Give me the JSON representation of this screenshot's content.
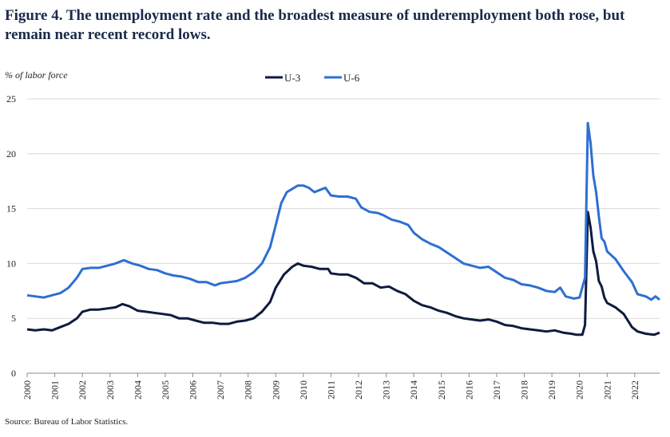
{
  "title": "Figure 4. The unemployment rate and the broadest measure of underemployment both rose, but remain near recent record lows.",
  "source": "Source: Bureau of Labor Statistics.",
  "chart_data": {
    "type": "line",
    "ylabel": "% of labor force",
    "xlabel": "",
    "ylim": [
      0,
      25
    ],
    "yticks": [
      0,
      5,
      10,
      15,
      20,
      25
    ],
    "xticks": [
      "2000",
      "2001",
      "2002",
      "2003",
      "2004",
      "2005",
      "2006",
      "2007",
      "2008",
      "2009",
      "2010",
      "2011",
      "2012",
      "2013",
      "2014",
      "2015",
      "2016",
      "2017",
      "2018",
      "2019",
      "2020",
      "2021",
      "2022"
    ],
    "xlim": [
      2000.0,
      2022.9
    ],
    "grid": "horizontal",
    "legend_position": "top-center",
    "series": [
      {
        "name": "U-3",
        "color": "#0d1b3e",
        "points": [
          [
            2000.0,
            4.0
          ],
          [
            2000.3,
            3.9
          ],
          [
            2000.6,
            4.0
          ],
          [
            2000.9,
            3.9
          ],
          [
            2001.2,
            4.2
          ],
          [
            2001.5,
            4.5
          ],
          [
            2001.8,
            5.0
          ],
          [
            2002.0,
            5.6
          ],
          [
            2002.3,
            5.8
          ],
          [
            2002.6,
            5.8
          ],
          [
            2002.9,
            5.9
          ],
          [
            2003.2,
            6.0
          ],
          [
            2003.45,
            6.3
          ],
          [
            2003.7,
            6.1
          ],
          [
            2004.0,
            5.7
          ],
          [
            2004.3,
            5.6
          ],
          [
            2004.6,
            5.5
          ],
          [
            2004.9,
            5.4
          ],
          [
            2005.2,
            5.3
          ],
          [
            2005.5,
            5.0
          ],
          [
            2005.8,
            5.0
          ],
          [
            2006.1,
            4.8
          ],
          [
            2006.4,
            4.6
          ],
          [
            2006.7,
            4.6
          ],
          [
            2007.0,
            4.5
          ],
          [
            2007.3,
            4.5
          ],
          [
            2007.6,
            4.7
          ],
          [
            2007.9,
            4.8
          ],
          [
            2008.2,
            5.0
          ],
          [
            2008.5,
            5.6
          ],
          [
            2008.8,
            6.5
          ],
          [
            2009.0,
            7.8
          ],
          [
            2009.3,
            9.0
          ],
          [
            2009.6,
            9.7
          ],
          [
            2009.8,
            10.0
          ],
          [
            2010.0,
            9.8
          ],
          [
            2010.3,
            9.7
          ],
          [
            2010.6,
            9.5
          ],
          [
            2010.9,
            9.5
          ],
          [
            2011.0,
            9.1
          ],
          [
            2011.3,
            9.0
          ],
          [
            2011.6,
            9.0
          ],
          [
            2011.9,
            8.7
          ],
          [
            2012.2,
            8.2
          ],
          [
            2012.5,
            8.2
          ],
          [
            2012.8,
            7.8
          ],
          [
            2013.1,
            7.9
          ],
          [
            2013.4,
            7.5
          ],
          [
            2013.7,
            7.2
          ],
          [
            2014.0,
            6.6
          ],
          [
            2014.3,
            6.2
          ],
          [
            2014.6,
            6.0
          ],
          [
            2014.9,
            5.7
          ],
          [
            2015.2,
            5.5
          ],
          [
            2015.5,
            5.2
          ],
          [
            2015.8,
            5.0
          ],
          [
            2016.1,
            4.9
          ],
          [
            2016.4,
            4.8
          ],
          [
            2016.7,
            4.9
          ],
          [
            2017.0,
            4.7
          ],
          [
            2017.3,
            4.4
          ],
          [
            2017.6,
            4.3
          ],
          [
            2017.9,
            4.1
          ],
          [
            2018.2,
            4.0
          ],
          [
            2018.5,
            3.9
          ],
          [
            2018.8,
            3.8
          ],
          [
            2019.1,
            3.9
          ],
          [
            2019.4,
            3.7
          ],
          [
            2019.7,
            3.6
          ],
          [
            2019.9,
            3.5
          ],
          [
            2020.1,
            3.5
          ],
          [
            2020.2,
            4.4
          ],
          [
            2020.3,
            14.7
          ],
          [
            2020.4,
            13.3
          ],
          [
            2020.5,
            11.1
          ],
          [
            2020.6,
            10.2
          ],
          [
            2020.7,
            8.4
          ],
          [
            2020.8,
            7.9
          ],
          [
            2020.9,
            6.9
          ],
          [
            2021.0,
            6.4
          ],
          [
            2021.3,
            6.0
          ],
          [
            2021.6,
            5.4
          ],
          [
            2021.9,
            4.2
          ],
          [
            2022.1,
            3.8
          ],
          [
            2022.4,
            3.6
          ],
          [
            2022.7,
            3.5
          ],
          [
            2022.9,
            3.7
          ]
        ]
      },
      {
        "name": "U-6",
        "color": "#2e6fd1",
        "points": [
          [
            2000.0,
            7.1
          ],
          [
            2000.3,
            7.0
          ],
          [
            2000.6,
            6.9
          ],
          [
            2000.9,
            7.1
          ],
          [
            2001.2,
            7.3
          ],
          [
            2001.5,
            7.8
          ],
          [
            2001.8,
            8.7
          ],
          [
            2002.0,
            9.5
          ],
          [
            2002.3,
            9.6
          ],
          [
            2002.6,
            9.6
          ],
          [
            2002.9,
            9.8
          ],
          [
            2003.2,
            10.0
          ],
          [
            2003.5,
            10.3
          ],
          [
            2003.8,
            10.0
          ],
          [
            2004.1,
            9.8
          ],
          [
            2004.4,
            9.5
          ],
          [
            2004.7,
            9.4
          ],
          [
            2005.0,
            9.1
          ],
          [
            2005.3,
            8.9
          ],
          [
            2005.6,
            8.8
          ],
          [
            2005.9,
            8.6
          ],
          [
            2006.2,
            8.3
          ],
          [
            2006.5,
            8.3
          ],
          [
            2006.8,
            8.0
          ],
          [
            2007.0,
            8.2
          ],
          [
            2007.3,
            8.3
          ],
          [
            2007.6,
            8.4
          ],
          [
            2007.9,
            8.7
          ],
          [
            2008.2,
            9.2
          ],
          [
            2008.5,
            10.0
          ],
          [
            2008.8,
            11.5
          ],
          [
            2009.0,
            13.5
          ],
          [
            2009.2,
            15.5
          ],
          [
            2009.4,
            16.5
          ],
          [
            2009.6,
            16.8
          ],
          [
            2009.8,
            17.1
          ],
          [
            2010.0,
            17.1
          ],
          [
            2010.2,
            16.9
          ],
          [
            2010.4,
            16.5
          ],
          [
            2010.6,
            16.7
          ],
          [
            2010.8,
            16.9
          ],
          [
            2011.0,
            16.2
          ],
          [
            2011.3,
            16.1
          ],
          [
            2011.6,
            16.1
          ],
          [
            2011.9,
            15.9
          ],
          [
            2012.1,
            15.1
          ],
          [
            2012.4,
            14.7
          ],
          [
            2012.7,
            14.6
          ],
          [
            2012.9,
            14.4
          ],
          [
            2013.2,
            14.0
          ],
          [
            2013.5,
            13.8
          ],
          [
            2013.8,
            13.5
          ],
          [
            2014.0,
            12.8
          ],
          [
            2014.3,
            12.2
          ],
          [
            2014.6,
            11.8
          ],
          [
            2014.9,
            11.5
          ],
          [
            2015.2,
            11.0
          ],
          [
            2015.5,
            10.5
          ],
          [
            2015.8,
            10.0
          ],
          [
            2016.1,
            9.8
          ],
          [
            2016.4,
            9.6
          ],
          [
            2016.7,
            9.7
          ],
          [
            2017.0,
            9.2
          ],
          [
            2017.3,
            8.7
          ],
          [
            2017.6,
            8.5
          ],
          [
            2017.9,
            8.1
          ],
          [
            2018.2,
            8.0
          ],
          [
            2018.5,
            7.8
          ],
          [
            2018.8,
            7.5
          ],
          [
            2019.1,
            7.4
          ],
          [
            2019.3,
            7.8
          ],
          [
            2019.5,
            7.0
          ],
          [
            2019.8,
            6.8
          ],
          [
            2020.0,
            6.9
          ],
          [
            2020.2,
            8.7
          ],
          [
            2020.3,
            22.8
          ],
          [
            2020.4,
            21.0
          ],
          [
            2020.5,
            18.0
          ],
          [
            2020.6,
            16.5
          ],
          [
            2020.7,
            14.3
          ],
          [
            2020.8,
            12.3
          ],
          [
            2020.9,
            12.0
          ],
          [
            2021.0,
            11.1
          ],
          [
            2021.3,
            10.4
          ],
          [
            2021.6,
            9.3
          ],
          [
            2021.9,
            8.3
          ],
          [
            2022.1,
            7.2
          ],
          [
            2022.4,
            7.0
          ],
          [
            2022.6,
            6.7
          ],
          [
            2022.75,
            7.0
          ],
          [
            2022.9,
            6.7
          ]
        ]
      }
    ]
  }
}
